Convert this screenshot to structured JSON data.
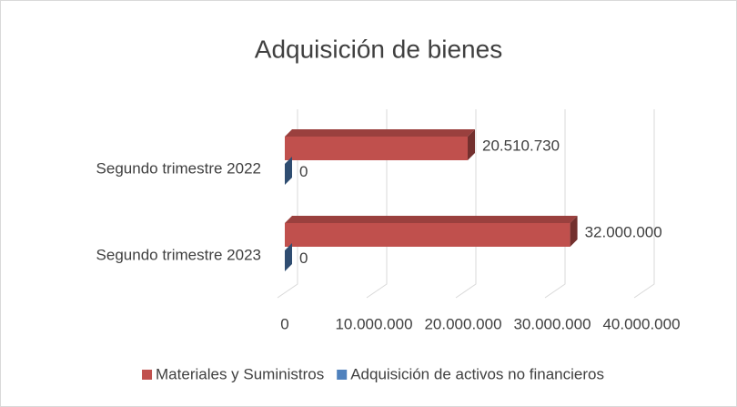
{
  "chart_data": {
    "type": "bar3d_horizontal",
    "title": "Adquisición de bienes",
    "categories": [
      "Segundo trimestre 2022",
      "Segundo  trimestre 2023"
    ],
    "series": [
      {
        "name": "Materiales y Suministros",
        "color": "#c0504d",
        "values": [
          20510730,
          32000000
        ],
        "value_labels": [
          "20.510.730",
          "32.000.000"
        ]
      },
      {
        "name": "Adquisición de activos no financieros",
        "color": "#4f81bd",
        "values": [
          0,
          0
        ],
        "value_labels": [
          "0",
          "0"
        ]
      }
    ],
    "xlim": [
      0,
      40000000
    ],
    "xticks": [
      0,
      {
        "value": 10000000,
        "label": "10.000.000"
      },
      {
        "value": 20000000,
        "label": "20.000.000"
      },
      {
        "value": 30000000,
        "label": "30.000.000"
      },
      {
        "value": 40000000,
        "label": "40.000.000"
      }
    ],
    "grid": true,
    "legend": "bottom"
  }
}
